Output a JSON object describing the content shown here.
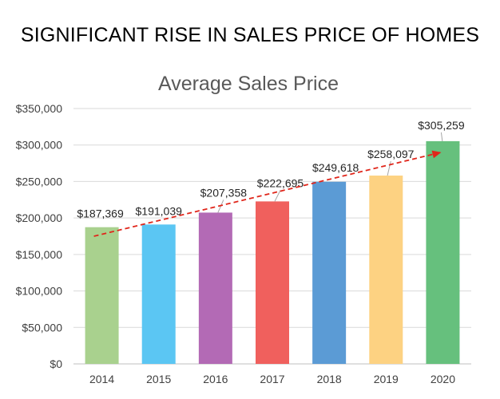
{
  "headline": "SIGNIFICANT RISE IN SALES PRICE OF HOMES",
  "chart_data": {
    "type": "bar",
    "title": "Average Sales Price",
    "xlabel": "",
    "ylabel": "",
    "categories": [
      "2014",
      "2015",
      "2016",
      "2017",
      "2018",
      "2019",
      "2020"
    ],
    "values": [
      187369,
      191039,
      207358,
      222695,
      249618,
      258097,
      305259
    ],
    "data_labels": [
      "$187,369",
      "$191,039",
      "$207,358",
      "$222,695",
      "$249,618",
      "$258,097",
      "$305,259"
    ],
    "ylim": [
      0,
      350000
    ],
    "yticks": [
      0,
      50000,
      100000,
      150000,
      200000,
      250000,
      300000,
      350000
    ],
    "ytick_labels": [
      "$0",
      "$50,000",
      "$100,000",
      "$150,000",
      "$200,000",
      "$250,000",
      "$300,000",
      "$350,000"
    ],
    "bar_colors": [
      "#a9d18e",
      "#5bc6f3",
      "#b36ab5",
      "#f0605d",
      "#5b9bd5",
      "#fdd282",
      "#66c07d"
    ],
    "trendline": {
      "style": "dashed",
      "color": "#e0261b",
      "arrow": true,
      "from_value": 175000,
      "to_value": 290000
    },
    "grid": true,
    "legend": "none"
  }
}
